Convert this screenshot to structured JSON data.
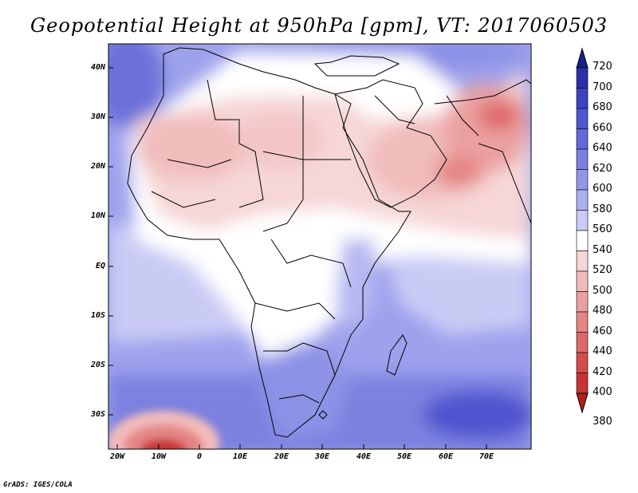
{
  "title": "Geopotential Height at 950hPa [gpm], VT: 2017060503",
  "credit": "GrADS: IGES/COLA",
  "lat_labels": [
    "40N",
    "30N",
    "20N",
    "10N",
    "EQ",
    "10S",
    "20S",
    "30S"
  ],
  "lon_labels": [
    "20W",
    "10W",
    "0",
    "10E",
    "20E",
    "30E",
    "40E",
    "50E",
    "60E",
    "70E"
  ],
  "colorbar": {
    "levels": [
      "720",
      "700",
      "680",
      "660",
      "640",
      "620",
      "600",
      "580",
      "560",
      "540",
      "520",
      "500",
      "480",
      "460",
      "440",
      "420",
      "400",
      "380"
    ],
    "colors": [
      "#1b1f8e",
      "#2b30a8",
      "#3c42c0",
      "#4f55cf",
      "#6268d9",
      "#7a7fe1",
      "#9296e8",
      "#abaeef",
      "#c9cbf5",
      "#ffffff",
      "#f6d6d6",
      "#f1bcbc",
      "#eba0a0",
      "#e58585",
      "#de6868",
      "#d54c4c",
      "#c83434",
      "#b21d1d"
    ]
  }
}
